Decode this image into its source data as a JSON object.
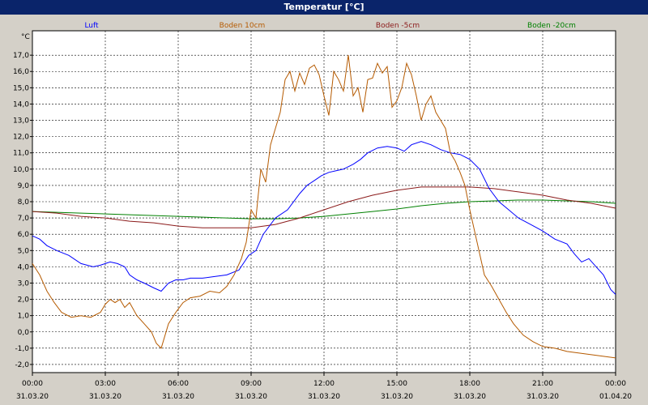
{
  "window": {
    "title": "Temperatur [°C]"
  },
  "chart_data": {
    "type": "line",
    "title": "Temperatur [°C]",
    "ylabel": "°C",
    "xlabel": "",
    "ylim": [
      -2.5,
      18.5
    ],
    "yticks": [
      -2,
      -1,
      0,
      1,
      2,
      3,
      4,
      5,
      6,
      7,
      8,
      9,
      10,
      11,
      12,
      13,
      14,
      15,
      16,
      17
    ],
    "ytick_labels": [
      "-2,0",
      "-1,0",
      "0,0",
      "1,0",
      "2,0",
      "3,0",
      "4,0",
      "5,0",
      "6,0",
      "7,0",
      "8,0",
      "9,0",
      "10,0",
      "11,0",
      "12,0",
      "13,0",
      "14,0",
      "15,0",
      "16,0",
      "17,0"
    ],
    "xlim": [
      0,
      24
    ],
    "xticks": [
      0,
      3,
      6,
      9,
      12,
      15,
      18,
      21,
      24
    ],
    "xtick_labels": [
      {
        "time": "00:00",
        "date": "31.03.20"
      },
      {
        "time": "03:00",
        "date": "31.03.20"
      },
      {
        "time": "06:00",
        "date": "31.03.20"
      },
      {
        "time": "09:00",
        "date": "31.03.20"
      },
      {
        "time": "12:00",
        "date": "31.03.20"
      },
      {
        "time": "15:00",
        "date": "31.03.20"
      },
      {
        "time": "18:00",
        "date": "31.03.20"
      },
      {
        "time": "21:00",
        "date": "31.03.20"
      },
      {
        "time": "00:00",
        "date": "01.04.20"
      }
    ],
    "grid": true,
    "legend_position": "top",
    "series": [
      {
        "name": "Luft",
        "color": "#0000ff",
        "x": [
          0,
          0.3,
          0.6,
          1.0,
          1.5,
          2.0,
          2.5,
          2.8,
          3.0,
          3.2,
          3.5,
          3.8,
          4.0,
          4.3,
          4.6,
          5.0,
          5.3,
          5.6,
          5.9,
          6.2,
          6.5,
          7.0,
          7.5,
          8.0,
          8.5,
          8.9,
          9.2,
          9.5,
          10.0,
          10.5,
          11.0,
          11.3,
          11.6,
          11.9,
          12.2,
          12.5,
          12.8,
          13.2,
          13.5,
          13.8,
          14.2,
          14.6,
          15.0,
          15.3,
          15.6,
          16.0,
          16.4,
          16.8,
          17.2,
          17.6,
          18.0,
          18.4,
          18.8,
          19.2,
          19.6,
          20.0,
          20.5,
          21.0,
          21.5,
          22.0,
          22.3,
          22.6,
          22.9,
          23.2,
          23.5,
          23.8,
          24.0
        ],
        "y": [
          5.9,
          5.7,
          5.3,
          5.0,
          4.7,
          4.2,
          4.0,
          4.1,
          4.2,
          4.3,
          4.2,
          4.0,
          3.5,
          3.2,
          3.0,
          2.7,
          2.5,
          3.0,
          3.2,
          3.2,
          3.3,
          3.3,
          3.4,
          3.5,
          3.8,
          4.7,
          5.0,
          6.0,
          7.0,
          7.5,
          8.5,
          9.0,
          9.3,
          9.6,
          9.8,
          9.9,
          10.0,
          10.3,
          10.6,
          11.0,
          11.3,
          11.4,
          11.3,
          11.1,
          11.5,
          11.7,
          11.5,
          11.2,
          11.0,
          10.9,
          10.6,
          10.0,
          8.8,
          8.0,
          7.5,
          7.0,
          6.6,
          6.2,
          5.7,
          5.4,
          4.8,
          4.3,
          4.5,
          4.0,
          3.5,
          2.6,
          2.3
        ]
      },
      {
        "name": "Boden 10cm",
        "color": "#b55a00",
        "x": [
          0,
          0.3,
          0.6,
          0.9,
          1.2,
          1.6,
          2.0,
          2.4,
          2.8,
          3.0,
          3.2,
          3.4,
          3.6,
          3.8,
          4.0,
          4.3,
          4.6,
          4.9,
          5.1,
          5.3,
          5.6,
          5.9,
          6.2,
          6.5,
          6.9,
          7.3,
          7.7,
          8.0,
          8.3,
          8.6,
          8.8,
          9.0,
          9.2,
          9.4,
          9.6,
          9.8,
          10.0,
          10.2,
          10.4,
          10.6,
          10.8,
          11.0,
          11.2,
          11.4,
          11.6,
          11.8,
          12.0,
          12.2,
          12.4,
          12.6,
          12.8,
          13.0,
          13.2,
          13.4,
          13.6,
          13.8,
          14.0,
          14.2,
          14.4,
          14.6,
          14.8,
          15.0,
          15.2,
          15.4,
          15.6,
          15.8,
          16.0,
          16.2,
          16.4,
          16.6,
          16.8,
          17.0,
          17.2,
          17.4,
          17.6,
          17.8,
          18.0,
          18.3,
          18.6,
          18.9,
          19.2,
          19.5,
          19.8,
          20.2,
          20.6,
          21.0,
          21.5,
          22.0,
          22.5,
          23.0,
          23.5,
          24.0
        ],
        "y": [
          4.2,
          3.5,
          2.5,
          1.8,
          1.2,
          0.9,
          1.0,
          0.9,
          1.2,
          1.7,
          2.0,
          1.8,
          2.0,
          1.5,
          1.8,
          1.0,
          0.5,
          0.0,
          -0.7,
          -1.0,
          0.5,
          1.2,
          1.8,
          2.1,
          2.2,
          2.5,
          2.4,
          2.8,
          3.5,
          4.5,
          5.5,
          7.5,
          7.0,
          10.0,
          9.2,
          11.5,
          12.5,
          13.5,
          15.5,
          16.0,
          14.8,
          15.9,
          15.2,
          16.2,
          16.4,
          15.8,
          14.5,
          13.3,
          16.0,
          15.5,
          14.8,
          17.0,
          14.5,
          15.0,
          13.5,
          15.5,
          15.6,
          16.5,
          15.9,
          16.3,
          13.8,
          14.2,
          15.0,
          16.5,
          15.8,
          14.5,
          13.0,
          14.0,
          14.5,
          13.5,
          13.0,
          12.5,
          11.0,
          10.5,
          9.8,
          9.0,
          7.5,
          5.5,
          3.5,
          2.8,
          2.0,
          1.2,
          0.5,
          -0.2,
          -0.6,
          -0.9,
          -1.0,
          -1.2,
          -1.3,
          -1.4,
          -1.5,
          -1.6
        ]
      },
      {
        "name": "Boden -5cm",
        "color": "#8b1a1a",
        "x": [
          0,
          1,
          2,
          3,
          4,
          5,
          6,
          7,
          8,
          9,
          10,
          11,
          12,
          13,
          14,
          15,
          16,
          17,
          18,
          19,
          20,
          21,
          22,
          23,
          24
        ],
        "y": [
          7.4,
          7.3,
          7.1,
          7.0,
          6.8,
          6.7,
          6.5,
          6.4,
          6.4,
          6.4,
          6.6,
          7.0,
          7.5,
          8.0,
          8.4,
          8.7,
          8.9,
          8.9,
          8.9,
          8.8,
          8.6,
          8.4,
          8.1,
          7.9,
          7.6
        ]
      },
      {
        "name": "Boden -20cm",
        "color": "#008000",
        "x": [
          0,
          2,
          4,
          6,
          8,
          9,
          10,
          11,
          12,
          13,
          14,
          15,
          16,
          17,
          18,
          19,
          20,
          21,
          22,
          23,
          24
        ],
        "y": [
          7.4,
          7.3,
          7.2,
          7.1,
          7.0,
          6.95,
          6.95,
          7.0,
          7.1,
          7.25,
          7.4,
          7.55,
          7.75,
          7.9,
          8.0,
          8.05,
          8.1,
          8.1,
          8.05,
          8.0,
          7.9
        ]
      }
    ]
  }
}
